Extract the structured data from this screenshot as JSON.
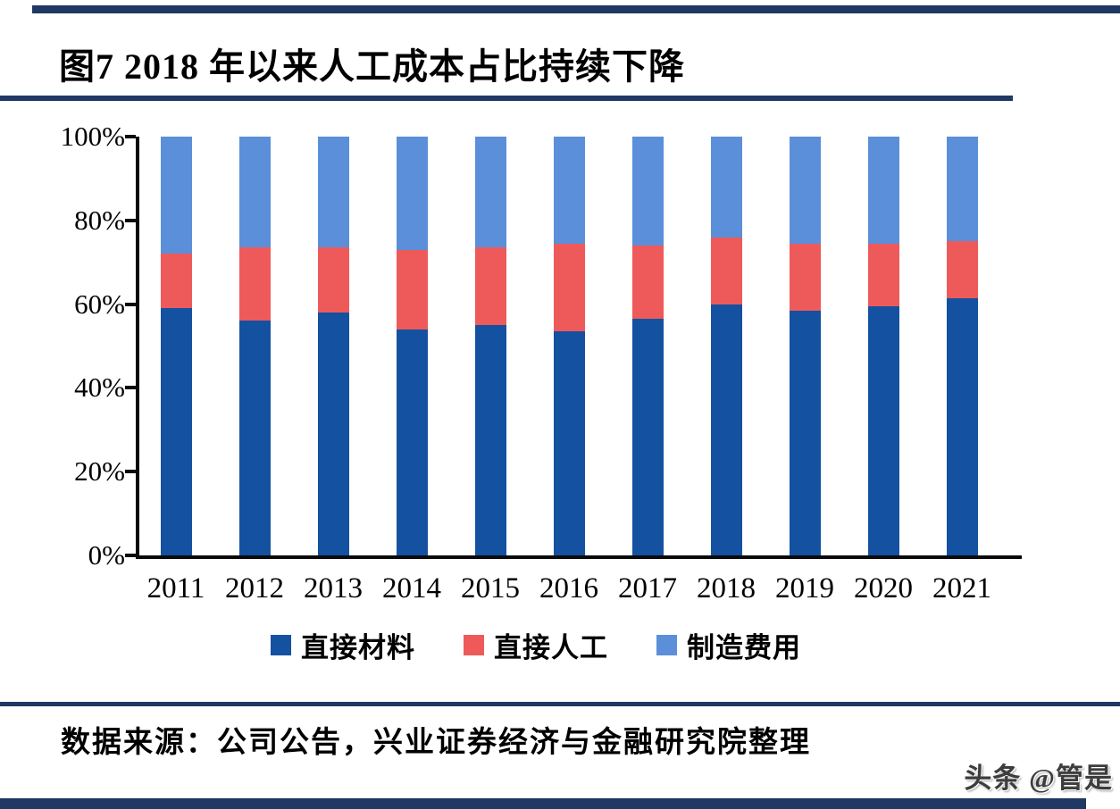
{
  "figure": {
    "title": "图7 2018 年以来人工成本占比持续下降",
    "source": "数据来源：公司公告，兴业证券经济与金融研究院整理",
    "watermark": "头条 @管是"
  },
  "colors": {
    "rule_navy": "#1F3864",
    "axis_black": "#0a0a0a",
    "direct_materials_blue": "#1451A1",
    "direct_labor_red": "#EE5A5A",
    "manufacturing_lightblue": "#5B8FD9"
  },
  "chart_data": {
    "type": "bar",
    "stacked": true,
    "title": "图7 2018 年以来人工成本占比持续下降",
    "xlabel": "",
    "ylabel": "",
    "ylim": [
      0,
      100
    ],
    "yticks": [
      "0%",
      "20%",
      "40%",
      "60%",
      "80%",
      "100%"
    ],
    "grid": false,
    "legend_position": "bottom",
    "categories": [
      "2011",
      "2012",
      "2013",
      "2014",
      "2015",
      "2016",
      "2017",
      "2018",
      "2019",
      "2020",
      "2021"
    ],
    "series": [
      {
        "name": "直接材料",
        "color": "#1451A1",
        "values": [
          59,
          56,
          58,
          54,
          55,
          53.5,
          56.5,
          60,
          58.5,
          59.5,
          61.5
        ]
      },
      {
        "name": "直接人工",
        "color": "#EE5A5A",
        "values": [
          13,
          17.5,
          15.5,
          19,
          18.5,
          21,
          17.5,
          16,
          16,
          15,
          13.5
        ]
      },
      {
        "name": "制造费用",
        "color": "#5B8FD9",
        "values": [
          28,
          26.5,
          26.5,
          27,
          26.5,
          25.5,
          26,
          24,
          25.5,
          25.5,
          25
        ]
      }
    ]
  }
}
